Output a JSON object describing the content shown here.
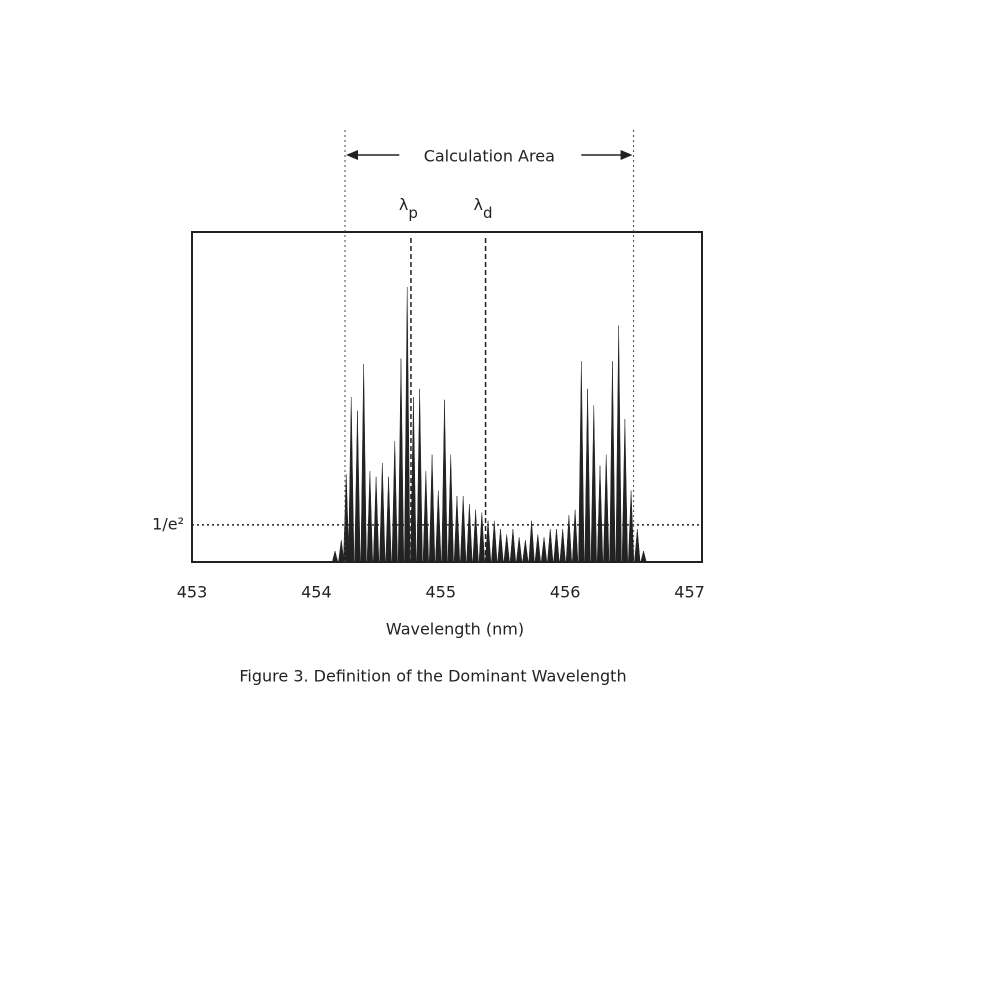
{
  "chart_data": {
    "type": "spectrum",
    "caption": "Figure 3. Definition of the Dominant Wavelength",
    "x_label": "Wavelength (nm)",
    "xlim": [
      453,
      457.1
    ],
    "xticks": [
      453,
      454,
      455,
      456,
      457
    ],
    "ylim": [
      0,
      1.2
    ],
    "yticks": [
      {
        "value": 0.135,
        "label": "1/e²"
      }
    ],
    "color": "#222222",
    "calculation_area": {
      "label": "Calculation Area",
      "x": [
        454.23,
        456.55
      ]
    },
    "markers": [
      {
        "symbol": "λ",
        "subscript": "p",
        "x": 454.76
      },
      {
        "symbol": "λ",
        "subscript": "d",
        "x": 455.36
      }
    ],
    "x": [
      454.15,
      454.2,
      454.24,
      454.28,
      454.33,
      454.38,
      454.43,
      454.48,
      454.53,
      454.58,
      454.63,
      454.68,
      454.73,
      454.78,
      454.83,
      454.88,
      454.93,
      454.98,
      455.03,
      455.08,
      455.13,
      455.18,
      455.23,
      455.28,
      455.33,
      455.38,
      455.43,
      455.48,
      455.53,
      455.58,
      455.63,
      455.68,
      455.73,
      455.78,
      455.83,
      455.88,
      455.93,
      455.98,
      456.03,
      456.08,
      456.13,
      456.18,
      456.23,
      456.28,
      456.33,
      456.38,
      456.43,
      456.48,
      456.53,
      456.58,
      456.63
    ],
    "values": [
      0.04,
      0.08,
      0.32,
      0.6,
      0.55,
      0.72,
      0.33,
      0.31,
      0.36,
      0.31,
      0.44,
      0.74,
      1.0,
      0.6,
      0.63,
      0.33,
      0.39,
      0.26,
      0.59,
      0.39,
      0.24,
      0.24,
      0.21,
      0.19,
      0.18,
      0.15,
      0.15,
      0.12,
      0.1,
      0.12,
      0.09,
      0.08,
      0.15,
      0.1,
      0.09,
      0.12,
      0.12,
      0.12,
      0.17,
      0.19,
      0.73,
      0.63,
      0.57,
      0.35,
      0.39,
      0.73,
      0.86,
      0.52,
      0.26,
      0.12,
      0.04
    ]
  }
}
